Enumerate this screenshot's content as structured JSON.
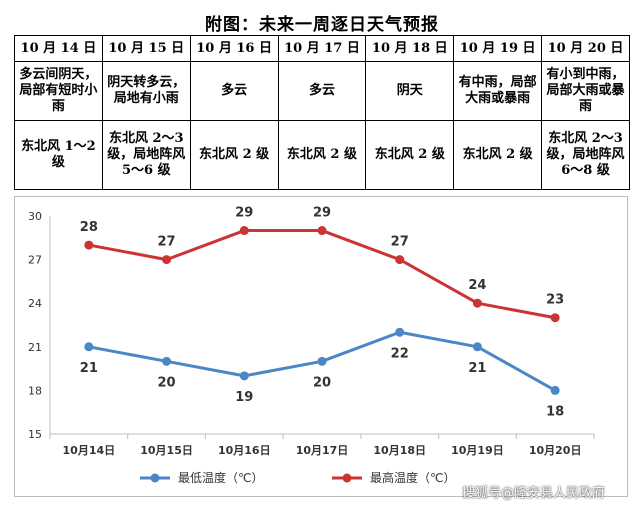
{
  "title": "附图：未来一周逐日天气预报",
  "forecast": {
    "dates": [
      "10 月 14 日",
      "10 月 15 日",
      "10 月 16 日",
      "10 月 17 日",
      "10 月 18 日",
      "10 月 19 日",
      "10 月 20 日"
    ],
    "weather": [
      "多云间阴天，局部有短时小雨",
      "阴天转多云，局地有小雨",
      "多云",
      "多云",
      "阴天",
      "有中雨，局部大雨或暴雨",
      "有小到中雨，局部大雨或暴雨"
    ],
    "wind": [
      "东北风 1～2 级",
      "东北风 2～3 级，局地阵风 5～6 级",
      "东北风 2 级",
      "东北风 2 级",
      "东北风 2 级",
      "东北风 2 级",
      "东北风 2～3 级，局地阵风 6～8 级"
    ]
  },
  "chart_data": {
    "type": "line",
    "categories": [
      "10月14日",
      "10月15日",
      "10月16日",
      "10月17日",
      "10月18日",
      "10月19日",
      "10月20日"
    ],
    "series": [
      {
        "name": "最低温度（℃）",
        "values": [
          21,
          20,
          19,
          20,
          22,
          21,
          18
        ],
        "color": "#4a86c8"
      },
      {
        "name": "最高温度（℃）",
        "values": [
          28,
          27,
          29,
          29,
          27,
          24,
          23
        ],
        "color": "#cc3333"
      }
    ],
    "ylim": [
      15,
      30
    ],
    "yticks": [
      15,
      18,
      21,
      24,
      27,
      30
    ],
    "grid": false,
    "legend": "bottom"
  },
  "watermark": "搜狐号@隆安县人民政府"
}
